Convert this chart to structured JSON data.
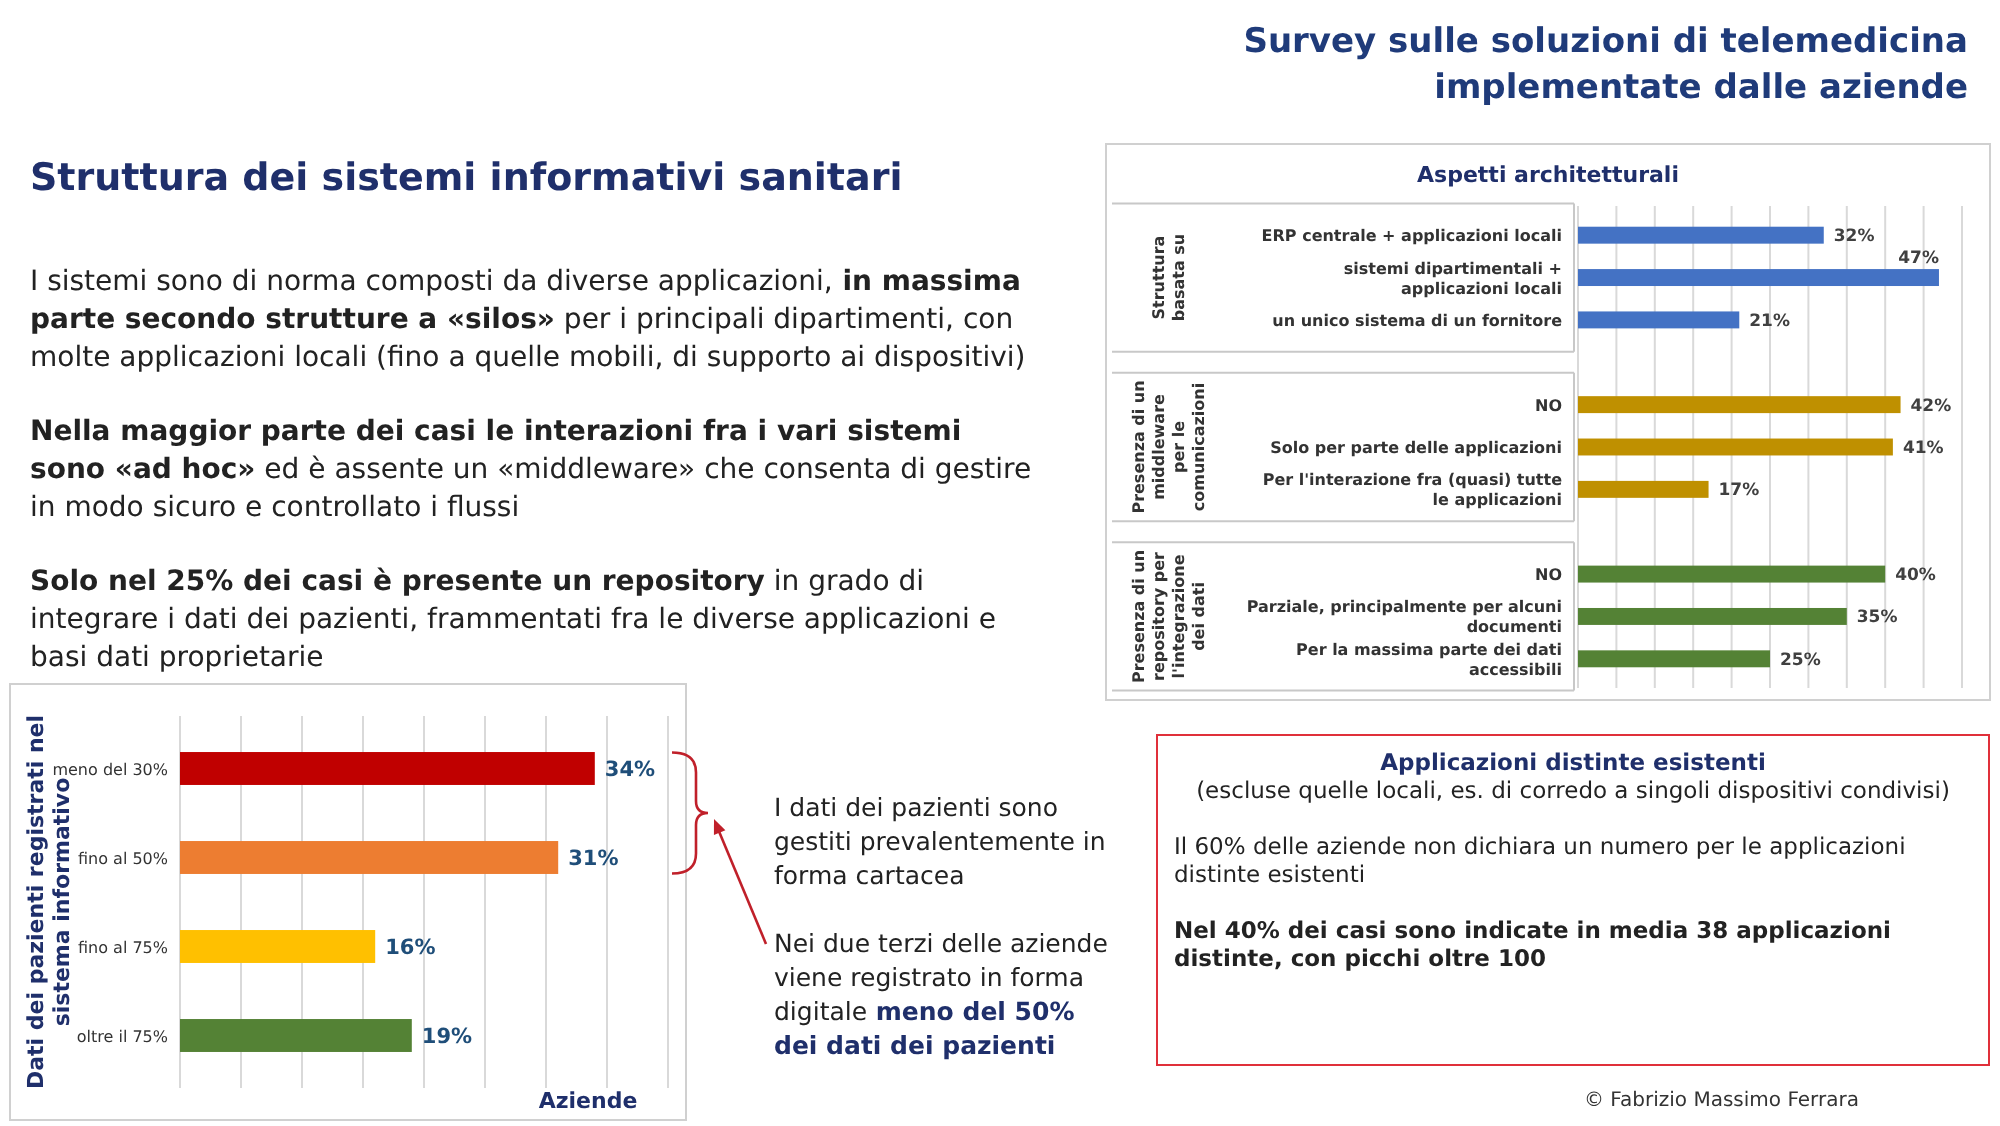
{
  "chart_data": [
    {
      "type": "other",
      "title": "Survey sulle soluzioni di telemedicina implementate dalle aziende",
      "subtitle": "Struttura dei sistemi informativi sanitari",
      "annotations": [
        "I sistemi sono di norma composti da diverse applicazioni,",
        "in massima parte secondo strutture a «silos»",
        "per i principali dipartimenti, con molte applicazioni locali (fino a quelle mobili, di supporto ai dispositivi)",
        "Nella maggior parte dei casi le interazioni fra i vari sistemi sono «ad hoc»",
        "ed è assente un «middleware» che consenta di gestire in modo sicuro e controllato i flussi",
        "Solo nel 25% dei casi è presente un repository",
        "in grado di integrare i dati dei pazienti, frammentati fra le diverse applicazioni e basi dati proprietarie",
        "© Fabrizio Massimo Ferrara"
      ]
    },
    {
      "type": "bar",
      "orientation": "horizontal",
      "title": "Aspetti architetturali",
      "categories": [
        "ERP centrale + applicazioni locali",
        "sistemi dipartimentali + applicazioni locali",
        "un unico sistema di un fornitore",
        null,
        "NO",
        "Solo per parte delle applicazioni",
        "Per l'interazione fra (quasi) tutte le applicazioni",
        null,
        "NO",
        "Parziale, principalmente per alcuni documenti",
        "Per la massima parte dei dati accessibili"
      ],
      "series": [
        {
          "color": "#4472c4",
          "values": [
            32,
            47,
            21,
            null,
            null,
            null,
            null,
            null,
            null,
            null,
            null
          ],
          "value_labels": [
            "32%",
            "47%",
            "21%",
            null,
            null,
            null,
            null,
            null,
            null,
            null,
            null
          ]
        },
        {
          "color": "#bf9000",
          "values": [
            null,
            null,
            null,
            null,
            42,
            41,
            17,
            null,
            null,
            null,
            null
          ],
          "value_labels": [
            null,
            null,
            null,
            null,
            "42%",
            "41%",
            "17%",
            null,
            null,
            null,
            null
          ]
        },
        {
          "color": "#548235",
          "values": [
            null,
            null,
            null,
            null,
            null,
            null,
            null,
            null,
            40,
            35,
            25
          ],
          "value_labels": [
            null,
            null,
            null,
            null,
            null,
            null,
            null,
            null,
            "40%",
            "35%",
            "25%"
          ]
        }
      ],
      "xlim": [
        0,
        50
      ],
      "xticks": [
        {
          "value": 0,
          "label": null
        },
        {
          "value": 5,
          "label": null
        },
        {
          "value": 10,
          "label": null
        },
        {
          "value": 15,
          "label": null
        },
        {
          "value": 20,
          "label": null
        },
        {
          "value": 25,
          "label": null
        },
        {
          "value": 30,
          "label": null
        },
        {
          "value": 35,
          "label": null
        },
        {
          "value": 40,
          "label": null
        },
        {
          "value": 45,
          "label": null
        },
        {
          "value": 50,
          "label": null
        }
      ],
      "grid": "x",
      "tick_labels": "y",
      "annotations": [
        "Struttura basata su",
        "Presenza di un middleware per le comunicazioni",
        "Presenza di un repository per l'integrazione dei dati"
      ]
    },
    {
      "type": "bar",
      "orientation": "horizontal",
      "categories": [
        "meno  del 30%",
        "fino al 50%",
        "fino al 75%",
        "oltre il 75%"
      ],
      "values": [
        34,
        31,
        16,
        19
      ],
      "colors": [
        "#c00000",
        "#ed7d31",
        "#ffc000",
        "#548235"
      ],
      "value_labels": [
        "34%",
        "31%",
        "16%",
        "19%"
      ],
      "xlim": [
        0,
        40
      ],
      "xticks": [
        {
          "value": 0,
          "label": null
        },
        {
          "value": 5,
          "label": null
        },
        {
          "value": 10,
          "label": null
        },
        {
          "value": 15,
          "label": null
        },
        {
          "value": 20,
          "label": null
        },
        {
          "value": 25,
          "label": null
        },
        {
          "value": 30,
          "label": null
        },
        {
          "value": 35,
          "label": null
        },
        {
          "value": 40,
          "label": null
        }
      ],
      "grid": "x",
      "tick_labels": "y",
      "xlabel": "Aziende",
      "ylabel": "Dati dei pazienti registrati nel sistema informativo",
      "annotations": [
        "I dati dei pazienti sono gestiti prevalentemente in forma cartacea",
        "Nei due terzi delle aziende viene registrato in forma digitale",
        "meno del 50% dei dati dei pazienti"
      ]
    },
    {
      "type": "other",
      "title": "Applicazioni distinte esistenti",
      "subtitle": "(escluse quelle locali, es. di corredo a singoli dispositivi condivisi)",
      "annotations": [
        "Il 60% delle aziende non dichiara un numero  per le applicazioni distinte esistenti",
        "Nel 40% dei casi sono indicate in media 38 applicazioni distinte, con picchi oltre 100"
      ]
    }
  ]
}
